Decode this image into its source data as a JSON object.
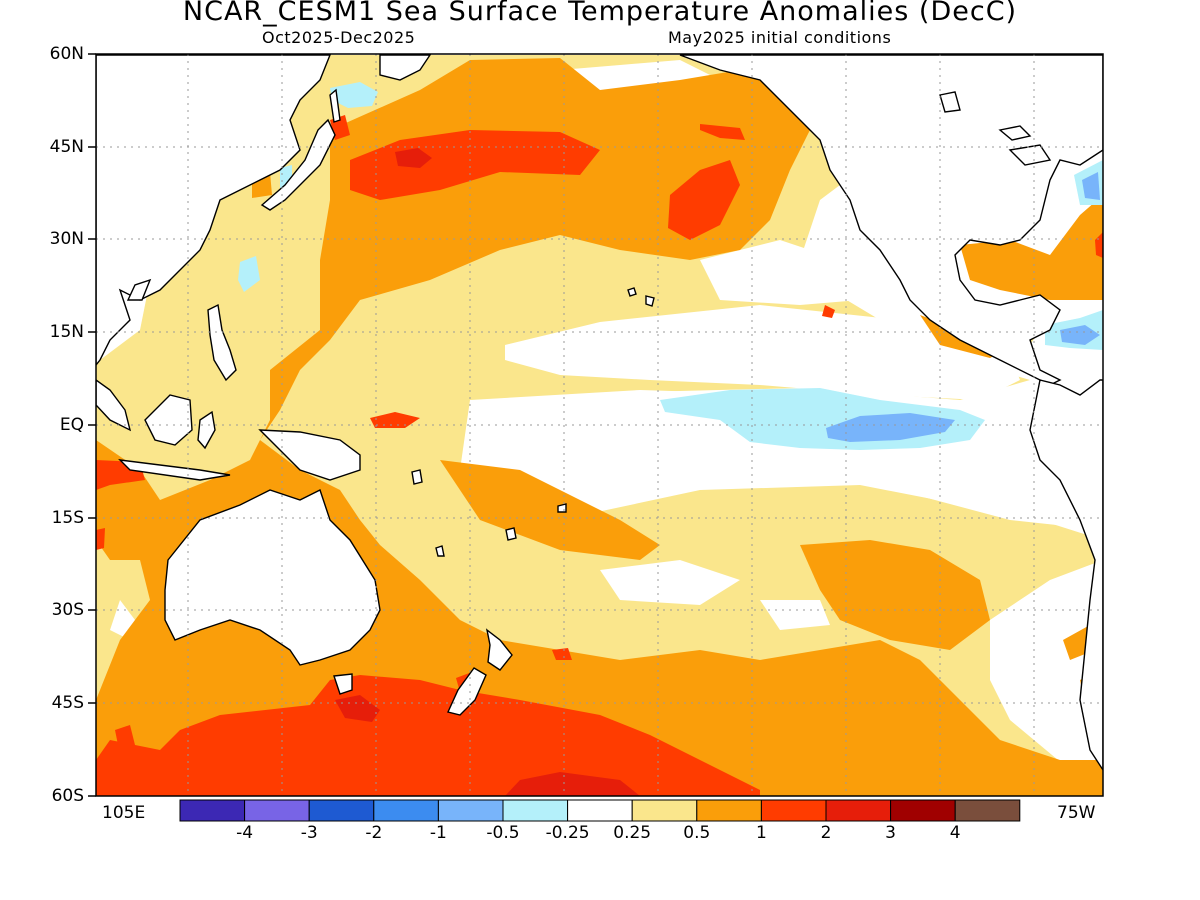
{
  "header": {
    "title": "NCAR_CESM1 Sea Surface Temperature Anomalies (DecC)",
    "period": "Oct2025-Dec2025",
    "init": "May2025 initial conditions"
  },
  "map": {
    "lat_labels": [
      "60N",
      "45N",
      "30N",
      "15N",
      "EQ",
      "15S",
      "30S",
      "45S",
      "60S"
    ],
    "lon_left_label": "105E",
    "lon_right_label": "75W",
    "lon_range": [
      "105E",
      "75W"
    ],
    "lat_range": [
      "60S",
      "60N"
    ],
    "gridlines": "dotted"
  },
  "colorbar": {
    "colors": [
      "#3c28b4",
      "#7864e6",
      "#1e5ad2",
      "#3c8cf0",
      "#78b4fa",
      "#b4f0fa",
      "#ffffff",
      "#fae68c",
      "#fa9e0a",
      "#ff3c00",
      "#e61e0a",
      "#a00000",
      "#7a4e3c"
    ],
    "labels": [
      "-4",
      "-3",
      "-2",
      "-1",
      "-0.5",
      "-0.25",
      "0.25",
      "0.5",
      "1",
      "2",
      "3",
      "4"
    ]
  }
}
